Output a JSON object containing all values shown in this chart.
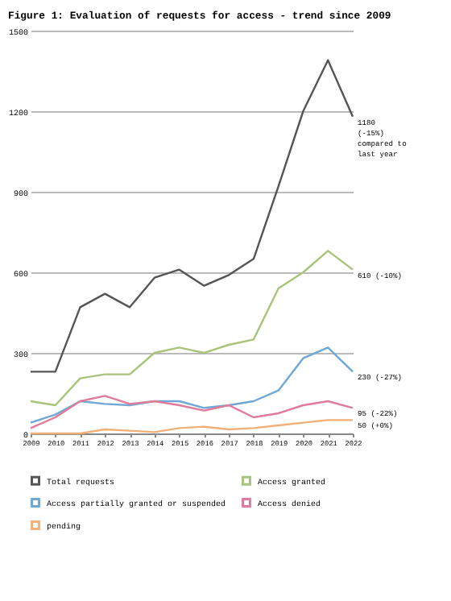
{
  "chart_data": {
    "type": "line",
    "title": "Figure 1: Evaluation of requests for access - trend since 2009",
    "categories": [
      "2009",
      "2010",
      "2011",
      "2012",
      "2013",
      "2014",
      "2015",
      "2016",
      "2017",
      "2018",
      "2019",
      "2020",
      "2021",
      "2022"
    ],
    "series": [
      {
        "name": "Total requests",
        "color": "#555555",
        "values": [
          230,
          230,
          470,
          520,
          470,
          580,
          610,
          550,
          590,
          650,
          920,
          1200,
          1390,
          1180
        ]
      },
      {
        "name": "Access granted",
        "color": "#a8c47a",
        "values": [
          120,
          105,
          205,
          220,
          220,
          300,
          320,
          300,
          330,
          350,
          540,
          600,
          680,
          610
        ]
      },
      {
        "name": "Access partially granted or suspended",
        "color": "#6fa8d6",
        "values": [
          40,
          70,
          120,
          110,
          105,
          120,
          120,
          95,
          105,
          120,
          160,
          280,
          320,
          230
        ]
      },
      {
        "name": "Access denied",
        "color": "#e07b9a",
        "values": [
          20,
          60,
          120,
          140,
          110,
          120,
          105,
          85,
          105,
          60,
          75,
          105,
          120,
          95
        ]
      },
      {
        "name": "pending",
        "color": "#f0b078",
        "values": [
          0,
          0,
          0,
          15,
          10,
          5,
          20,
          25,
          15,
          20,
          30,
          40,
          50,
          50
        ]
      }
    ],
    "annotations": [
      {
        "text": "1180\n(-15%)\ncompared to\nlast year",
        "x": "2022",
        "y": 1180
      },
      {
        "text": "610 (-10%)",
        "x": "2022",
        "y": 610
      },
      {
        "text": "230 (-27%)",
        "x": "2022",
        "y": 230
      },
      {
        "text": "95 (-22%)",
        "x": "2022",
        "y": 95
      },
      {
        "text": "50 (+0%)",
        "x": "2022",
        "y": 50
      }
    ],
    "ylim": [
      0,
      1500
    ],
    "yticks": [
      0,
      300,
      600,
      900,
      1200,
      1500
    ],
    "grid": "y",
    "legend": "bottom",
    "marker": "none",
    "line_style": "solid"
  }
}
